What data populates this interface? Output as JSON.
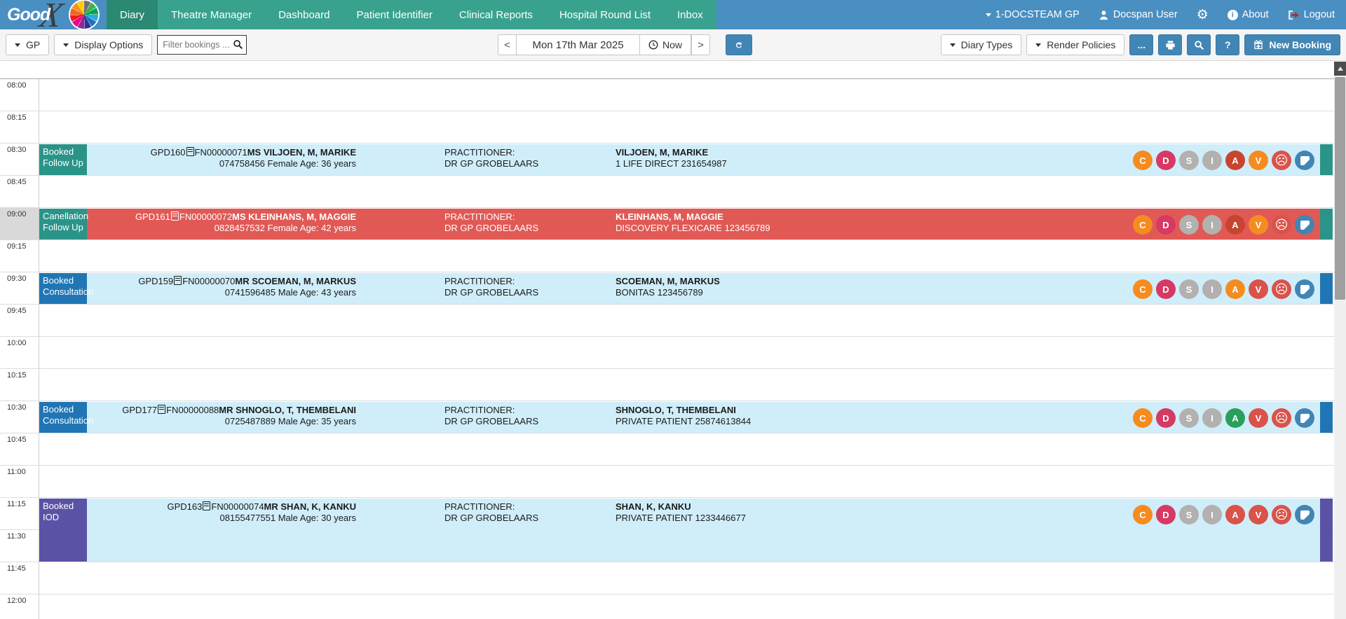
{
  "app": {
    "logo_text": "Good",
    "logo_x": "X"
  },
  "topnav": {
    "items": [
      {
        "label": "Diary",
        "active": true
      },
      {
        "label": "Theatre Manager",
        "active": false
      },
      {
        "label": "Dashboard",
        "active": false
      },
      {
        "label": "Patient Identifier",
        "active": false
      },
      {
        "label": "Clinical Reports",
        "active": false
      },
      {
        "label": "Hospital Round List",
        "active": false
      },
      {
        "label": "Inbox",
        "active": false
      }
    ],
    "entity": "1-DOCSTEAM GP",
    "user": "Docspan User",
    "about_label": "About",
    "logout_label": "Logout"
  },
  "toolbar": {
    "gp_label": "GP",
    "display_options_label": "Display Options",
    "filter_placeholder": "Filter bookings ...",
    "prev_label": "<",
    "date_value": "Mon 17th Mar 2025",
    "now_label": "Now",
    "next_label": ">",
    "diary_types_label": "Diary Types",
    "render_policies_label": "Render Policies",
    "more_label": "...",
    "help_label": "?",
    "new_booking_label": "New Booking"
  },
  "colors": {
    "topbar_blue": "#4a8fc2",
    "nav_teal": "#39a28e",
    "nav_active_teal": "#2b8873",
    "button_blue": "#4186b5",
    "booking_cyan": "#d0eef9",
    "cancelled_red": "#e15955",
    "status_teal": "#2b9489",
    "status_blue": "#2076b4",
    "status_purple": "#5a53a5"
  },
  "diary": {
    "time_slots": [
      "08:00",
      "08:15",
      "08:30",
      "08:45",
      "09:00",
      "09:15",
      "09:30",
      "09:45",
      "10:00",
      "10:15",
      "10:30",
      "10:45",
      "11:00",
      "11:15",
      "11:30",
      "11:45",
      "12:00"
    ],
    "highlighted_slot": "09:00",
    "practitioner_heading": "PRACTITIONER:",
    "practitioner_name": "DR GP GROBELAARS",
    "bookings": [
      {
        "time": "08:30",
        "duration_slots": 1,
        "status": "Booked",
        "type": "Follow Up",
        "label_color": "#2b9489",
        "end_bar_color": "#2b9489",
        "row_color": "#d0eef9",
        "text_color": "#1b1b1b",
        "account_no": "GPD160",
        "file_no": "FN00000071",
        "patient": "MS VILJOEN, M, MARIKE",
        "phone": "074758456",
        "demographics": "Female Age: 36 years",
        "member": "VILJOEN, M, MARIKE",
        "scheme": "1 LIFE DIRECT 231654987",
        "badges": [
          {
            "name": "badge-c",
            "glyph": "C",
            "color": "#f68b1f"
          },
          {
            "name": "badge-d",
            "glyph": "D",
            "color": "#d63a64"
          },
          {
            "name": "badge-s",
            "glyph": "S",
            "color": "#b3b0b0"
          },
          {
            "name": "badge-i",
            "glyph": "I",
            "color": "#b3b0b0"
          },
          {
            "name": "badge-a",
            "glyph": "A",
            "color": "#c7452e"
          },
          {
            "name": "badge-v",
            "glyph": "V",
            "color": "#f68b1f"
          },
          {
            "name": "sad-face-icon",
            "icon": "sad-face",
            "color": "#d9534a"
          },
          {
            "name": "note-icon",
            "icon": "note",
            "color": "#4285b4"
          }
        ]
      },
      {
        "time": "09:00",
        "duration_slots": 1,
        "status": "Canellation",
        "type": "Follow Up",
        "label_color": "#2b9489",
        "end_bar_color": "#2b9489",
        "row_color": "#e15955",
        "text_color": "#ffffff",
        "account_no": "GPD161",
        "file_no": "FN00000072",
        "patient": "MS KLEINHANS, M, MAGGIE",
        "phone": "0828457532",
        "demographics": "Female Age: 42 years",
        "member": "KLEINHANS, M, MAGGIE",
        "scheme": "DISCOVERY FLEXICARE 123456789",
        "badges": [
          {
            "name": "badge-c",
            "glyph": "C",
            "color": "#f68b1f"
          },
          {
            "name": "badge-d",
            "glyph": "D",
            "color": "#d63a64"
          },
          {
            "name": "badge-s",
            "glyph": "S",
            "color": "#b3b0b0"
          },
          {
            "name": "badge-i",
            "glyph": "I",
            "color": "#b3b0b0"
          },
          {
            "name": "badge-a",
            "glyph": "A",
            "color": "#c7452e"
          },
          {
            "name": "badge-v",
            "glyph": "V",
            "color": "#f68b1f"
          },
          {
            "name": "sad-face-icon",
            "icon": "sad-face",
            "color": "#d9534a"
          },
          {
            "name": "note-icon",
            "icon": "note",
            "color": "#4285b4"
          }
        ]
      },
      {
        "time": "09:30",
        "duration_slots": 1,
        "status": "Booked",
        "type": "Consultation",
        "label_color": "#2076b4",
        "end_bar_color": "#2076b4",
        "row_color": "#d0eef9",
        "text_color": "#1b1b1b",
        "account_no": "GPD159",
        "file_no": "FN00000070",
        "patient": "MR SCOEMAN, M, MARKUS",
        "phone": "0741596485",
        "demographics": "Male Age: 43 years",
        "member": "SCOEMAN, M, MARKUS",
        "scheme": "BONITAS 123456789",
        "badges": [
          {
            "name": "badge-c",
            "glyph": "C",
            "color": "#f68b1f"
          },
          {
            "name": "badge-d",
            "glyph": "D",
            "color": "#d63a64"
          },
          {
            "name": "badge-s",
            "glyph": "S",
            "color": "#b3b0b0"
          },
          {
            "name": "badge-i",
            "glyph": "I",
            "color": "#b3b0b0"
          },
          {
            "name": "badge-a",
            "glyph": "A",
            "color": "#f68b1f"
          },
          {
            "name": "badge-v",
            "glyph": "V",
            "color": "#d9534a"
          },
          {
            "name": "sad-face-icon",
            "icon": "sad-face",
            "color": "#d9534a"
          },
          {
            "name": "note-icon",
            "icon": "note",
            "color": "#4285b4"
          }
        ]
      },
      {
        "time": "10:30",
        "duration_slots": 1,
        "status": "Booked",
        "type": "Consultation",
        "label_color": "#2076b4",
        "end_bar_color": "#2076b4",
        "row_color": "#d0eef9",
        "text_color": "#1b1b1b",
        "account_no": "GPD177",
        "file_no": "FN00000088",
        "patient": "MR SHNOGLO, T, THEMBELANI",
        "phone": "0725487889",
        "demographics": "Male Age: 35 years",
        "member": "SHNOGLO, T, THEMBELANI",
        "scheme": "PRIVATE PATIENT 25874613844",
        "badges": [
          {
            "name": "badge-c",
            "glyph": "C",
            "color": "#f68b1f"
          },
          {
            "name": "badge-d",
            "glyph": "D",
            "color": "#d63a64"
          },
          {
            "name": "badge-s",
            "glyph": "S",
            "color": "#b3b0b0"
          },
          {
            "name": "badge-i",
            "glyph": "I",
            "color": "#b3b0b0"
          },
          {
            "name": "badge-a",
            "glyph": "A",
            "color": "#28a05c"
          },
          {
            "name": "badge-v",
            "glyph": "V",
            "color": "#d9534a"
          },
          {
            "name": "sad-face-icon",
            "icon": "sad-face",
            "color": "#d9534a"
          },
          {
            "name": "note-icon",
            "icon": "note",
            "color": "#4285b4"
          }
        ]
      },
      {
        "time": "11:15",
        "duration_slots": 2,
        "status": "Booked",
        "type": "IOD",
        "label_color": "#5a53a5",
        "end_bar_color": "#5a53a5",
        "row_color": "#d0eef9",
        "text_color": "#1b1b1b",
        "account_no": "GPD163",
        "file_no": "FN00000074",
        "patient": "MR SHAN, K, KANKU",
        "phone": "08155477551",
        "demographics": "Male Age: 30 years",
        "member": "SHAN, K, KANKU",
        "scheme": "PRIVATE PATIENT 1233446677",
        "badges": [
          {
            "name": "badge-c",
            "glyph": "C",
            "color": "#f68b1f"
          },
          {
            "name": "badge-d",
            "glyph": "D",
            "color": "#d63a64"
          },
          {
            "name": "badge-s",
            "glyph": "S",
            "color": "#b3b0b0"
          },
          {
            "name": "badge-i",
            "glyph": "I",
            "color": "#b3b0b0"
          },
          {
            "name": "badge-a",
            "glyph": "A",
            "color": "#d9534a"
          },
          {
            "name": "badge-v",
            "glyph": "V",
            "color": "#d9534a"
          },
          {
            "name": "sad-face-icon",
            "icon": "sad-face",
            "color": "#d9534a"
          },
          {
            "name": "note-icon",
            "icon": "note",
            "color": "#4285b4"
          }
        ]
      }
    ]
  }
}
